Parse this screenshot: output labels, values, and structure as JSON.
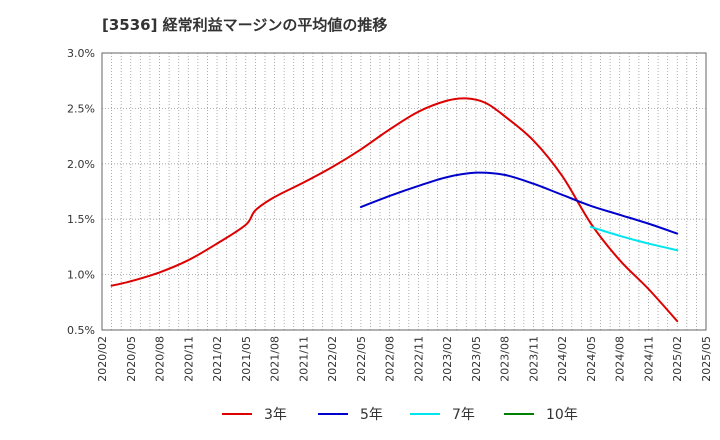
{
  "chart_data": {
    "type": "line",
    "title": "[3536]  経常利益マージンの平均値の推移",
    "xlabel": "",
    "ylabel": "",
    "x_ticks": [
      "2020/02",
      "2020/05",
      "2020/08",
      "2020/11",
      "2021/02",
      "2021/05",
      "2021/08",
      "2021/11",
      "2022/02",
      "2022/05",
      "2022/08",
      "2022/11",
      "2023/02",
      "2023/05",
      "2023/08",
      "2023/11",
      "2024/02",
      "2024/05",
      "2024/08",
      "2024/11",
      "2025/02",
      "2025/05"
    ],
    "y_ticks": [
      "0.5%",
      "1.0%",
      "1.5%",
      "2.0%",
      "2.5%",
      "3.0%"
    ],
    "ylim": [
      0.5,
      3.0
    ],
    "grid": true,
    "legend_position": "bottom",
    "series": [
      {
        "name": "3年",
        "color": "#dd0000",
        "points": [
          [
            "2020/03",
            0.9
          ],
          [
            "2020/05",
            0.94
          ],
          [
            "2020/08",
            1.02
          ],
          [
            "2020/11",
            1.13
          ],
          [
            "2021/02",
            1.28
          ],
          [
            "2021/05",
            1.45
          ],
          [
            "2021/06",
            1.58
          ],
          [
            "2021/08",
            1.7
          ],
          [
            "2021/11",
            1.83
          ],
          [
            "2022/02",
            1.97
          ],
          [
            "2022/05",
            2.13
          ],
          [
            "2022/08",
            2.31
          ],
          [
            "2022/11",
            2.47
          ],
          [
            "2023/02",
            2.57
          ],
          [
            "2023/04",
            2.59
          ],
          [
            "2023/06",
            2.55
          ],
          [
            "2023/08",
            2.43
          ],
          [
            "2023/11",
            2.21
          ],
          [
            "2024/02",
            1.89
          ],
          [
            "2024/05",
            1.46
          ],
          [
            "2024/08",
            1.13
          ],
          [
            "2024/11",
            0.87
          ],
          [
            "2025/02",
            0.58
          ]
        ]
      },
      {
        "name": "5年",
        "color": "#0000cc",
        "points": [
          [
            "2022/05",
            1.61
          ],
          [
            "2022/08",
            1.71
          ],
          [
            "2022/11",
            1.8
          ],
          [
            "2023/02",
            1.88
          ],
          [
            "2023/05",
            1.92
          ],
          [
            "2023/08",
            1.9
          ],
          [
            "2023/11",
            1.82
          ],
          [
            "2024/02",
            1.72
          ],
          [
            "2024/05",
            1.62
          ],
          [
            "2024/08",
            1.54
          ],
          [
            "2024/11",
            1.46
          ],
          [
            "2025/02",
            1.37
          ]
        ]
      },
      {
        "name": "7年",
        "color": "#00e5ee",
        "points": [
          [
            "2024/05",
            1.43
          ],
          [
            "2024/08",
            1.35
          ],
          [
            "2024/11",
            1.28
          ],
          [
            "2025/02",
            1.22
          ]
        ]
      },
      {
        "name": "10年",
        "color": "#008000",
        "points": []
      }
    ]
  }
}
